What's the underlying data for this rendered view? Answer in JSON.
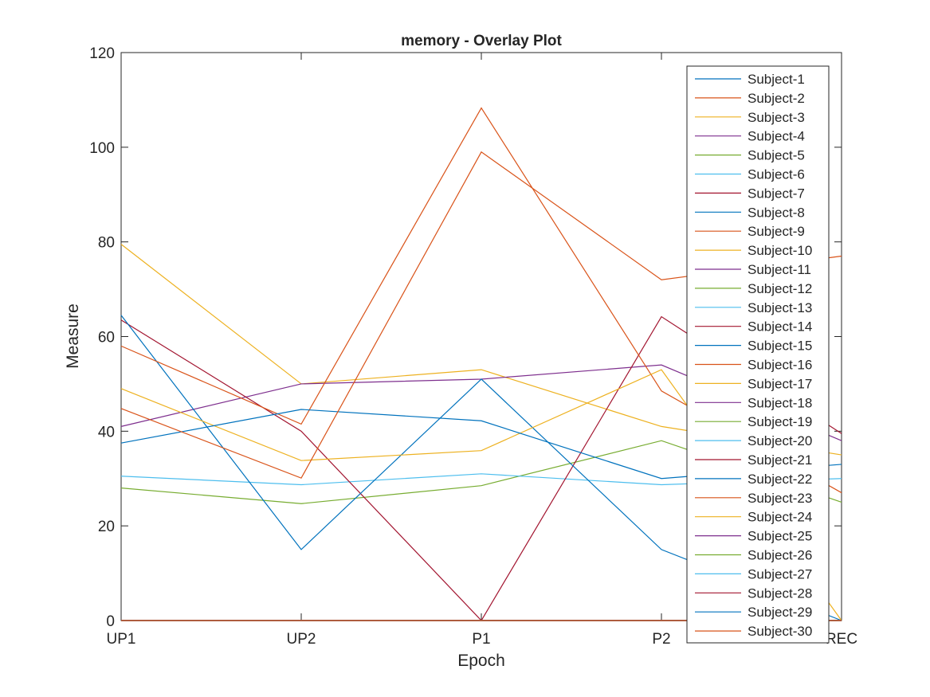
{
  "chart_data": {
    "type": "line",
    "title": "memory - Overlay Plot",
    "xlabel": "Epoch",
    "ylabel": "Measure",
    "categories": [
      "UP1",
      "UP2",
      "P1",
      "P2",
      "REC"
    ],
    "ylim": [
      0,
      120
    ],
    "yticks": [
      0,
      20,
      40,
      60,
      80,
      100,
      120
    ],
    "grid": false,
    "legend_position": "top-right",
    "colors": [
      "#0072BD",
      "#D95319",
      "#EDB120",
      "#7E2F8E",
      "#77AC30",
      "#4DBEEE",
      "#A2142F"
    ],
    "series": [
      {
        "name": "Subject-1",
        "values": [
          0,
          0,
          0,
          0,
          0
        ]
      },
      {
        "name": "Subject-2",
        "values": [
          0,
          0,
          0,
          0,
          0
        ]
      },
      {
        "name": "Subject-3",
        "values": [
          0,
          0,
          0,
          0,
          0
        ]
      },
      {
        "name": "Subject-4",
        "values": [
          0,
          0,
          0,
          0,
          0
        ]
      },
      {
        "name": "Subject-5",
        "values": [
          0,
          0,
          0,
          0,
          0
        ]
      },
      {
        "name": "Subject-6",
        "values": [
          0,
          0,
          0,
          0,
          0
        ]
      },
      {
        "name": "Subject-7",
        "values": [
          0,
          0,
          0,
          0,
          0
        ]
      },
      {
        "name": "Subject-8",
        "values": [
          0,
          0,
          0,
          0,
          0
        ]
      },
      {
        "name": "Subject-9",
        "values": [
          0,
          0,
          0,
          0,
          0
        ]
      },
      {
        "name": "Subject-10",
        "values": [
          79.5,
          50,
          53,
          41,
          35
        ]
      },
      {
        "name": "Subject-11",
        "values": [
          41,
          50,
          51,
          54,
          38
        ]
      },
      {
        "name": "Subject-12",
        "values": [
          28,
          24.7,
          28.5,
          38,
          25
        ]
      },
      {
        "name": "Subject-13",
        "values": [
          30.5,
          28.7,
          31,
          28.7,
          30
        ]
      },
      {
        "name": "Subject-14",
        "values": [
          63.5,
          40,
          0,
          64.2,
          39.5
        ]
      },
      {
        "name": "Subject-15",
        "values": [
          64.5,
          15,
          51,
          15,
          0
        ]
      },
      {
        "name": "Subject-16",
        "values": [
          58,
          41.5,
          108.3,
          48.5,
          27
        ]
      },
      {
        "name": "Subject-17",
        "values": [
          49,
          33.8,
          35.9,
          53,
          0
        ]
      },
      {
        "name": "Subject-18",
        "values": [
          0,
          0,
          0,
          0,
          0
        ]
      },
      {
        "name": "Subject-19",
        "values": [
          0,
          0,
          0,
          0,
          0
        ]
      },
      {
        "name": "Subject-20",
        "values": [
          0,
          0,
          0,
          0,
          0
        ]
      },
      {
        "name": "Subject-21",
        "values": [
          0,
          0,
          0,
          0,
          0
        ]
      },
      {
        "name": "Subject-22",
        "values": [
          37.5,
          44.6,
          42.2,
          30,
          33
        ]
      },
      {
        "name": "Subject-23",
        "values": [
          44.8,
          30.1,
          99,
          72,
          77
        ]
      },
      {
        "name": "Subject-24",
        "values": [
          0,
          0,
          0,
          0,
          0
        ]
      },
      {
        "name": "Subject-25",
        "values": [
          0,
          0,
          0,
          0,
          0
        ]
      },
      {
        "name": "Subject-26",
        "values": [
          0,
          0,
          0,
          0,
          0
        ]
      },
      {
        "name": "Subject-27",
        "values": [
          0,
          0,
          0,
          0,
          0
        ]
      },
      {
        "name": "Subject-28",
        "values": [
          0,
          0,
          0,
          0,
          0
        ]
      },
      {
        "name": "Subject-29",
        "values": [
          0,
          0,
          0,
          0,
          0
        ]
      },
      {
        "name": "Subject-30",
        "values": [
          0,
          0,
          0,
          0,
          0
        ]
      }
    ]
  }
}
